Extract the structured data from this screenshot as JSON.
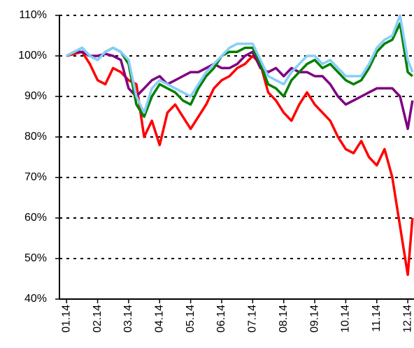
{
  "chart_data": {
    "type": "line",
    "x": [
      0,
      0.25,
      0.5,
      0.75,
      1,
      1.25,
      1.5,
      1.75,
      2,
      2.25,
      2.5,
      2.75,
      3,
      3.25,
      3.5,
      3.75,
      4,
      4.25,
      4.5,
      4.75,
      5,
      5.25,
      5.5,
      5.75,
      6,
      6.25,
      6.5,
      6.75,
      7,
      7.25,
      7.5,
      7.75,
      8,
      8.25,
      8.5,
      8.75,
      9,
      9.25,
      9.5,
      9.75,
      10,
      10.25,
      10.5,
      10.75,
      11,
      11.15
    ],
    "series": [
      {
        "color": "#ff0000",
        "values": [
          100,
          100.5,
          101,
          98,
          94,
          93,
          97,
          96,
          94,
          93,
          80,
          84,
          78,
          86,
          88,
          85,
          82,
          85,
          88,
          92,
          94,
          95,
          97,
          98,
          100,
          98,
          91,
          89,
          86,
          84,
          88,
          91,
          88,
          86,
          84,
          80,
          77,
          76,
          79,
          75,
          73,
          77,
          70,
          58,
          46,
          60
        ]
      },
      {
        "color": "#800080",
        "values": [
          100,
          101,
          101,
          100,
          100,
          100.5,
          100,
          99,
          92,
          90,
          92,
          94,
          95,
          93,
          94,
          95,
          96,
          96,
          97,
          98,
          97,
          97,
          98,
          100,
          101,
          97,
          96,
          97,
          95,
          97,
          96,
          96,
          95,
          95,
          93,
          90,
          88,
          89,
          90,
          91,
          92,
          92,
          92,
          90,
          82,
          89
        ]
      },
      {
        "color": "#008000",
        "values": [
          100,
          101,
          102,
          100,
          99,
          101,
          102,
          101,
          98,
          88,
          85,
          90,
          93,
          92,
          91,
          89,
          88,
          92,
          95,
          97,
          100,
          101,
          101,
          102,
          102,
          98,
          93,
          92,
          90,
          94,
          96,
          98,
          99,
          97,
          98,
          96,
          94,
          93,
          94,
          97,
          101,
          103,
          104,
          108,
          96,
          95
        ]
      },
      {
        "color": "#87cefa",
        "values": [
          100,
          101,
          102,
          100,
          99,
          101,
          102,
          101,
          99,
          90,
          86,
          92,
          94,
          93,
          92,
          91,
          90,
          93,
          96,
          98,
          100,
          102,
          103,
          103,
          103,
          99,
          95,
          94,
          93,
          96,
          98,
          100,
          100,
          98,
          99,
          97,
          95,
          95,
          95,
          98,
          102,
          104,
          105,
          110,
          99,
          96
        ]
      }
    ],
    "xlim": [
      -0.23,
      11.2
    ],
    "xticks": [
      {
        "value": 0,
        "label": "01.14"
      },
      {
        "value": 1,
        "label": "02.14"
      },
      {
        "value": 2,
        "label": "03.14"
      },
      {
        "value": 3,
        "label": "04.14"
      },
      {
        "value": 4,
        "label": "05.14"
      },
      {
        "value": 5,
        "label": "06.14"
      },
      {
        "value": 6,
        "label": "07.14"
      },
      {
        "value": 7,
        "label": "08.14"
      },
      {
        "value": 8,
        "label": "09.14"
      },
      {
        "value": 9,
        "label": "10.14"
      },
      {
        "value": 10,
        "label": "11.14"
      },
      {
        "value": 11,
        "label": "12.14"
      }
    ],
    "ylim": [
      40,
      110
    ],
    "yticks": [
      {
        "value": 40,
        "label": "40%"
      },
      {
        "value": 50,
        "label": "50%"
      },
      {
        "value": 60,
        "label": "60%"
      },
      {
        "value": 70,
        "label": "70%"
      },
      {
        "value": 80,
        "label": "80%"
      },
      {
        "value": 90,
        "label": "90%"
      },
      {
        "value": 100,
        "label": "100%"
      },
      {
        "value": 110,
        "label": "110%"
      }
    ],
    "grid": true
  }
}
